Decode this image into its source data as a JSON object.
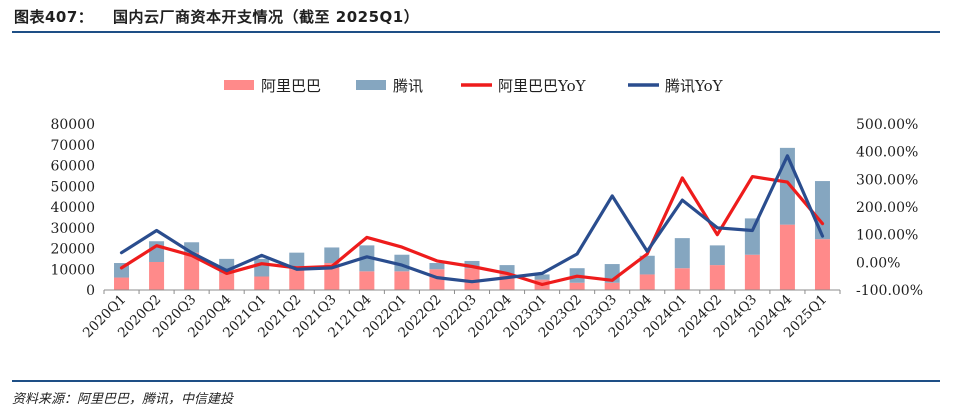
{
  "figure": {
    "number": "图表407：",
    "title": "国内云厂商资本开支情况（截至 2025Q1）",
    "source": "资料来源：阿里巴巴，腾讯，中信建投"
  },
  "chart_data": {
    "type": "bar+line",
    "categories": [
      "2020Q1",
      "2020Q2",
      "2020Q3",
      "2020Q4",
      "2021Q1",
      "2021Q2",
      "2021Q3",
      "2121Q4",
      "2022Q1",
      "2022Q2",
      "2022Q3",
      "2022Q4",
      "2023Q1",
      "2023Q2",
      "2023Q3",
      "2023Q4",
      "2024Q1",
      "2024Q2",
      "2024Q3",
      "2024Q4",
      "2025Q1"
    ],
    "bars_stacked": true,
    "series": [
      {
        "name": "阿里巴巴",
        "kind": "bar",
        "axis": "left",
        "color": "#ff8a8a",
        "values": [
          6000,
          13500,
          18000,
          8000,
          6500,
          11500,
          13000,
          9000,
          9000,
          10000,
          10500,
          7500,
          5000,
          3500,
          3500,
          7500,
          10500,
          12000,
          17000,
          31500,
          24500
        ]
      },
      {
        "name": "腾讯",
        "kind": "bar",
        "axis": "left",
        "color": "#85a6c0",
        "values": [
          7000,
          10000,
          5000,
          7000,
          8500,
          6500,
          7500,
          12500,
          8000,
          3000,
          3500,
          4500,
          2500,
          7000,
          9000,
          9000,
          14500,
          9500,
          17500,
          37000,
          28000
        ]
      },
      {
        "name": "阿里巴巴YoY",
        "kind": "line",
        "axis": "right",
        "color": "#ee1c1c",
        "values": [
          -20,
          60,
          25,
          -40,
          -5,
          -20,
          -15,
          90,
          55,
          5,
          -15,
          -40,
          -80,
          -50,
          -65,
          30,
          305,
          100,
          310,
          290,
          140
        ]
      },
      {
        "name": "腾讯YoY",
        "kind": "line",
        "axis": "right",
        "color": "#2a4d8e",
        "values": [
          35,
          115,
          35,
          -30,
          25,
          -25,
          -20,
          20,
          -10,
          -55,
          -70,
          -55,
          -40,
          30,
          240,
          40,
          225,
          125,
          115,
          385,
          95
        ]
      }
    ],
    "y_left": {
      "min": 0,
      "max": 80000,
      "step": 10000
    },
    "y_right": {
      "min": -100,
      "max": 500,
      "step": 100,
      "suffix": ".00%"
    },
    "legend_position": "top-center"
  }
}
